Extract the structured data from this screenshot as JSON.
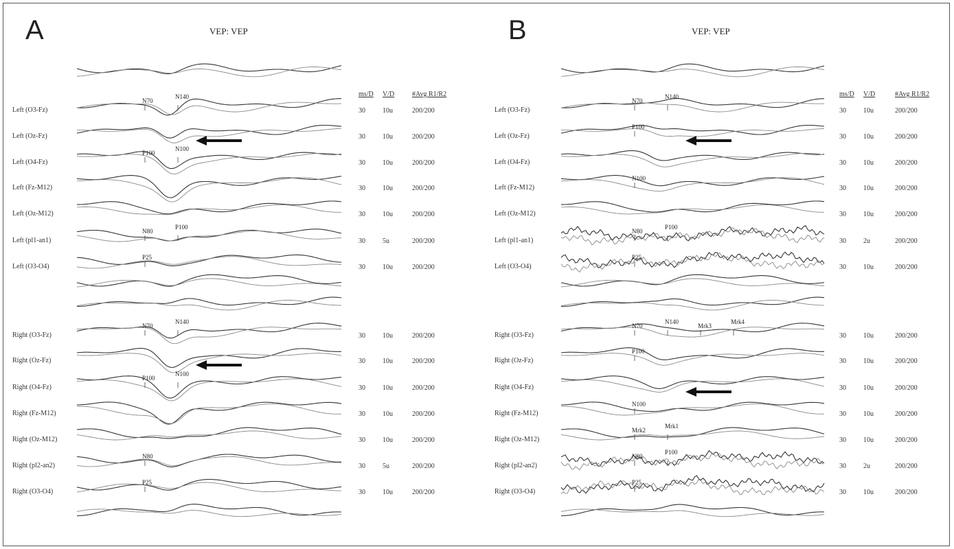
{
  "chart_data": [
    {
      "type": "line",
      "panel": "A",
      "title": "VEP:  VEP",
      "columns": [
        "ms/D",
        "V/D",
        "#Avg  R1/R2"
      ],
      "channels": [
        {
          "label": "Left  (O3-Fz)",
          "ms_per_div": "30",
          "v_per_div": "10u",
          "avg": "200/200",
          "markers": [
            "N70",
            "N140"
          ]
        },
        {
          "label": "Left  (Oz-Fz)",
          "ms_per_div": "30",
          "v_per_div": "10u",
          "avg": "200/200",
          "markers": []
        },
        {
          "label": "Left  (O4-Fz)",
          "ms_per_div": "30",
          "v_per_div": "10u",
          "avg": "200/200",
          "markers": [
            "P100",
            "N100"
          ]
        },
        {
          "label": "Left  (Fz-M12)",
          "ms_per_div": "30",
          "v_per_div": "10u",
          "avg": "200/200",
          "markers": []
        },
        {
          "label": "Left  (Oz-M12)",
          "ms_per_div": "30",
          "v_per_div": "10u",
          "avg": "200/200",
          "markers": []
        },
        {
          "label": "Left  (pl1-an1)",
          "ms_per_div": "30",
          "v_per_div": "5u",
          "avg": "200/200",
          "markers": [
            "N80",
            "P100"
          ]
        },
        {
          "label": "Left  (O3-O4)",
          "ms_per_div": "30",
          "v_per_div": "10u",
          "avg": "200/200",
          "markers": [
            "P25"
          ]
        },
        {
          "label": "Right  (O3-Fz)",
          "ms_per_div": "30",
          "v_per_div": "10u",
          "avg": "200/200",
          "markers": [
            "N70",
            "N140"
          ]
        },
        {
          "label": "Right  (Oz-Fz)",
          "ms_per_div": "30",
          "v_per_div": "10u",
          "avg": "200/200",
          "markers": []
        },
        {
          "label": "Right  (O4-Fz)",
          "ms_per_div": "30",
          "v_per_div": "10u",
          "avg": "200/200",
          "markers": [
            "P100",
            "N100"
          ]
        },
        {
          "label": "Right  (Fz-M12)",
          "ms_per_div": "30",
          "v_per_div": "10u",
          "avg": "200/200",
          "markers": []
        },
        {
          "label": "Right  (Oz-M12)",
          "ms_per_div": "30",
          "v_per_div": "10u",
          "avg": "200/200",
          "markers": []
        },
        {
          "label": "Right  (pl2-an2)",
          "ms_per_div": "30",
          "v_per_div": "5u",
          "avg": "200/200",
          "markers": [
            "N80"
          ]
        },
        {
          "label": "Right  (O3-O4)",
          "ms_per_div": "30",
          "v_per_div": "10u",
          "avg": "200/200",
          "markers": [
            "P25"
          ]
        }
      ]
    },
    {
      "type": "line",
      "panel": "B",
      "title": "VEP:  VEP",
      "columns": [
        "ms/D",
        "V/D",
        "#Avg  R1/R2"
      ],
      "channels": [
        {
          "label": "Left  (O3-Fz)",
          "ms_per_div": "30",
          "v_per_div": "10u",
          "avg": "200/200",
          "markers": [
            "N70",
            "N140"
          ]
        },
        {
          "label": "Left  (Oz-Fz)",
          "ms_per_div": "30",
          "v_per_div": "10u",
          "avg": "200/200",
          "markers": [
            "P100"
          ]
        },
        {
          "label": "Left  (O4-Fz)",
          "ms_per_div": "30",
          "v_per_div": "10u",
          "avg": "200/200",
          "markers": []
        },
        {
          "label": "Left  (Fz-M12)",
          "ms_per_div": "30",
          "v_per_div": "10u",
          "avg": "200/200",
          "markers": [
            "N100"
          ]
        },
        {
          "label": "Left  (Oz-M12)",
          "ms_per_div": "30",
          "v_per_div": "10u",
          "avg": "200/200",
          "markers": []
        },
        {
          "label": "Left  (pl1-an1)",
          "ms_per_div": "30",
          "v_per_div": "2u",
          "avg": "200/200",
          "markers": [
            "N80",
            "P100"
          ]
        },
        {
          "label": "Left  (O3-O4)",
          "ms_per_div": "30",
          "v_per_div": "10u",
          "avg": "200/200",
          "markers": [
            "P25"
          ]
        },
        {
          "label": "Right  (O3-Fz)",
          "ms_per_div": "30",
          "v_per_div": "10u",
          "avg": "200/200",
          "markers": [
            "N70",
            "N140",
            "Mrk3",
            "Mrk4"
          ]
        },
        {
          "label": "Right  (Oz-Fz)",
          "ms_per_div": "30",
          "v_per_div": "10u",
          "avg": "200/200",
          "markers": [
            "P100"
          ]
        },
        {
          "label": "Right  (O4-Fz)",
          "ms_per_div": "30",
          "v_per_div": "10u",
          "avg": "200/200",
          "markers": []
        },
        {
          "label": "Right  (Fz-M12)",
          "ms_per_div": "30",
          "v_per_div": "10u",
          "avg": "200/200",
          "markers": [
            "N100"
          ]
        },
        {
          "label": "Right  (Oz-M12)",
          "ms_per_div": "30",
          "v_per_div": "10u",
          "avg": "200/200",
          "markers": [
            "Mrk2",
            "Mrk1"
          ]
        },
        {
          "label": "Right  (pl2-an2)",
          "ms_per_div": "30",
          "v_per_div": "2u",
          "avg": "200/200",
          "markers": [
            "N80",
            "P100"
          ]
        },
        {
          "label": "Right  (O3-O4)",
          "ms_per_div": "30",
          "v_per_div": "10u",
          "avg": "200/200",
          "markers": [
            "P25"
          ]
        }
      ]
    }
  ],
  "panels": [
    {
      "letter": "A",
      "title": "VEP:  VEP"
    },
    {
      "letter": "B",
      "title": "VEP:  VEP"
    }
  ]
}
